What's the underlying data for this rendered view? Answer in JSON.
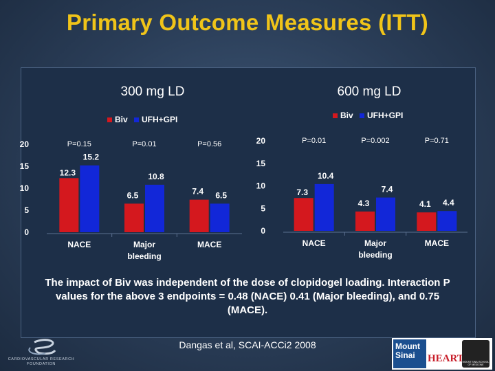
{
  "slide": {
    "title": "Primary Outcome Measures (ITT)",
    "conclusion": "The impact of Biv was independent of the dose of clopidogel loading. Interaction P values for the above 3 endpoints = 0.48 (NACE) 0.41 (Major bleeding), and 0.75 (MACE).",
    "citation": "Dangas et al, SCAI-ACCi2 2008",
    "logos": {
      "left": {
        "name": "cardiovascular-research-foundation-logo",
        "text": "CARDIOVASCULAR RESEARCH FOUNDATION"
      },
      "right": {
        "name": "mount-sinai-heart-logo",
        "text_primary": "Mount Sinai",
        "text_secondary": "HEART",
        "seal_text": "MOUNT SINAI SCHOOL OF MEDICINE"
      }
    }
  },
  "colors": {
    "biv": "#d4181e",
    "ufh_gpi": "#1227d8",
    "title": "#f0c419",
    "text": "#ffffff"
  },
  "chart_data": [
    {
      "type": "bar",
      "title": "300 mg LD",
      "categories": [
        "NACE",
        "Major bleeding",
        "MACE"
      ],
      "series": [
        {
          "name": "Biv",
          "values": [
            12.3,
            6.5,
            7.4
          ]
        },
        {
          "name": "UFH+GPI",
          "values": [
            15.2,
            10.8,
            6.5
          ]
        }
      ],
      "data_labels": [
        [
          "12.3",
          "15.2"
        ],
        [
          "6.5",
          "10.8"
        ],
        [
          "7.4",
          "6.5"
        ]
      ],
      "p_values": [
        "P=0.15",
        "P=0.01",
        "P=0.56"
      ],
      "yticks": [
        0,
        5,
        10,
        15,
        20
      ],
      "ylim": [
        0,
        20
      ],
      "legend": "top-center",
      "grid": false
    },
    {
      "type": "bar",
      "title": "600 mg LD",
      "categories": [
        "NACE",
        "Major bleeding",
        "MACE"
      ],
      "series": [
        {
          "name": "Biv",
          "values": [
            7.3,
            4.3,
            4.1
          ]
        },
        {
          "name": "UFH+GPI",
          "values": [
            10.4,
            7.4,
            4.4
          ]
        }
      ],
      "data_labels": [
        [
          "7.3",
          "10.4"
        ],
        [
          "4.3",
          "7.4"
        ],
        [
          "4.1",
          "4.4"
        ]
      ],
      "p_values": [
        "P=0.01",
        "P=0.002",
        "P=0.71"
      ],
      "yticks": [
        0,
        5,
        10,
        15,
        20
      ],
      "ylim": [
        0,
        20
      ],
      "legend": "top-center",
      "grid": false
    }
  ]
}
